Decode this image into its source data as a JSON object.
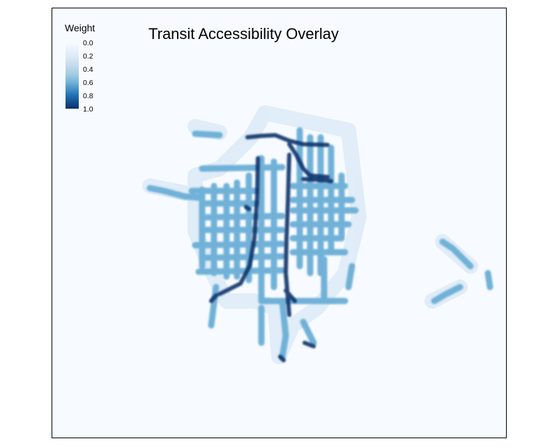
{
  "map": {
    "title": "Transit Accessibility Overlay",
    "background_color": "#f7fbff",
    "colors": {
      "low": "#c6dbef",
      "mid": "#6baed6",
      "high": "#08306b"
    },
    "legend": {
      "title": "Weight",
      "labels": [
        "0.0",
        "0.2",
        "0.4",
        "0.6",
        "0.8",
        "1.0"
      ]
    }
  }
}
